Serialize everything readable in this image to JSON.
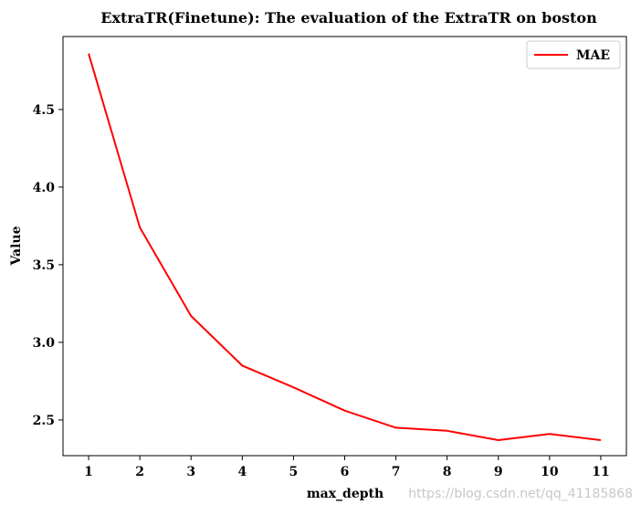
{
  "chart_data": {
    "type": "line",
    "title": "ExtraTR(Finetune): The evaluation of the ExtraTR on boston",
    "xlabel": "max_depth",
    "ylabel": "Value",
    "x": [
      1,
      2,
      3,
      4,
      5,
      6,
      7,
      8,
      9,
      10,
      11
    ],
    "x_tick_labels": [
      "1",
      "2",
      "3",
      "4",
      "5",
      "6",
      "7",
      "8",
      "9",
      "10",
      "11"
    ],
    "y_ticks": [
      2.5,
      3.0,
      3.5,
      4.0,
      4.5
    ],
    "y_tick_labels": [
      "2.5",
      "3.0",
      "3.5",
      "4.0",
      "4.5"
    ],
    "xlim": [
      0.5,
      11.5
    ],
    "ylim": [
      2.27,
      4.97
    ],
    "grid": false,
    "legend_position": "top-right",
    "series": [
      {
        "name": "MAE",
        "color": "#ff0000",
        "values": [
          4.86,
          3.74,
          3.17,
          2.85,
          2.71,
          2.56,
          2.45,
          2.43,
          2.37,
          2.41,
          2.37
        ]
      }
    ]
  },
  "watermark": "https://blog.csdn.net/qq_41185868"
}
